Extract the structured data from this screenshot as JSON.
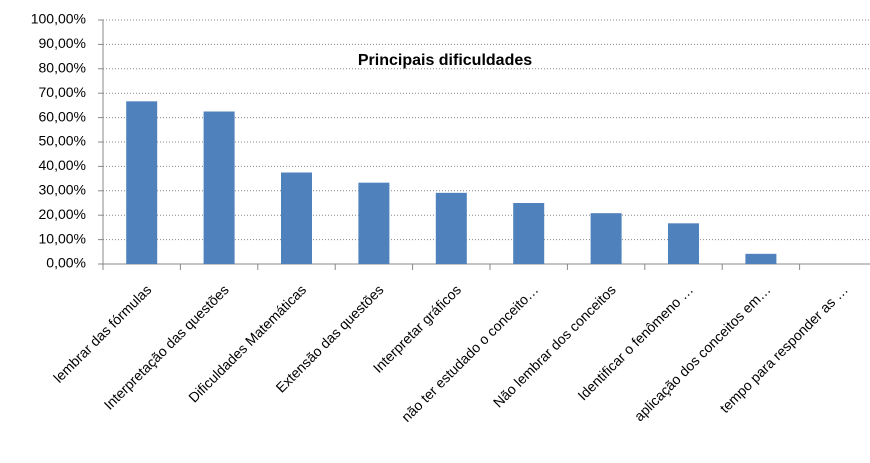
{
  "chart_data": {
    "type": "bar",
    "title": "Principais dificuldades",
    "categories": [
      "lembrar das fórmulas",
      "Interpretação das questões",
      "Dificuldades Matemáticas",
      "Extensão das questões",
      "Interpretar gráficos",
      "não ter estudado o conceito…",
      "Não lembrar dos conceitos",
      "Identificar o fenômeno …",
      "aplicação dos conceitos em…",
      "tempo para responder as …"
    ],
    "values": [
      66.67,
      62.5,
      37.5,
      33.33,
      29.17,
      25,
      20.83,
      16.67,
      4.17,
      0
    ],
    "color": "#4f81bd",
    "ylim": [
      0,
      100
    ],
    "yticks": [
      {
        "value": 0,
        "label": "0,00%"
      },
      {
        "value": 10,
        "label": "10,00%"
      },
      {
        "value": 20,
        "label": "20,00%"
      },
      {
        "value": 30,
        "label": "30,00%"
      },
      {
        "value": 40,
        "label": "40,00%"
      },
      {
        "value": 50,
        "label": "50,00%"
      },
      {
        "value": 60,
        "label": "60,00%"
      },
      {
        "value": 70,
        "label": "70,00%"
      },
      {
        "value": 80,
        "label": "80,00%"
      },
      {
        "value": 90,
        "label": "90,00%"
      },
      {
        "value": 100,
        "label": "100,00%"
      }
    ],
    "grid": true
  }
}
